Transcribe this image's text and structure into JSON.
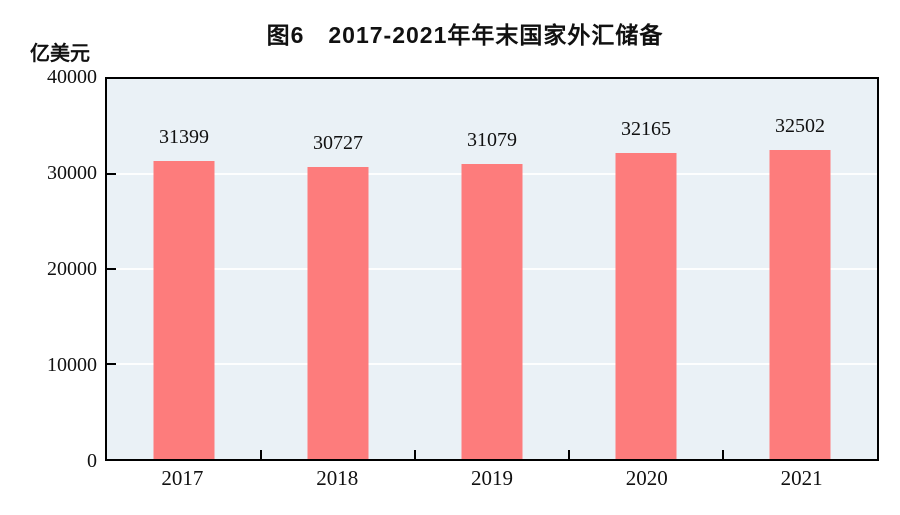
{
  "header": {
    "title": "图6　2017-2021年年末国家外汇储备"
  },
  "chart_data": {
    "type": "bar",
    "title": "图6　2017-2021年年末国家外汇储备",
    "unit_label": "亿美元",
    "categories": [
      "2017",
      "2018",
      "2019",
      "2020",
      "2021"
    ],
    "values": [
      31399,
      30727,
      31079,
      32165,
      32502
    ],
    "data_labels": [
      "31399",
      "30727",
      "31079",
      "32165",
      "32502"
    ],
    "xlabel": "",
    "ylabel": "亿美元",
    "ylim": [
      0,
      40000
    ],
    "y_tick_interval": 10000,
    "y_ticks": [
      "40000",
      "30000",
      "20000",
      "10000",
      "0"
    ],
    "grid": "horizontal-white-lines-at-10000-intervals",
    "legend": "none"
  },
  "colors": {
    "bar": "#fd7c7c",
    "plot_background": "#eaf1f6",
    "axis": "#000000",
    "gridline": "rgba(255,255,255,0.9)",
    "text": "#111111"
  }
}
